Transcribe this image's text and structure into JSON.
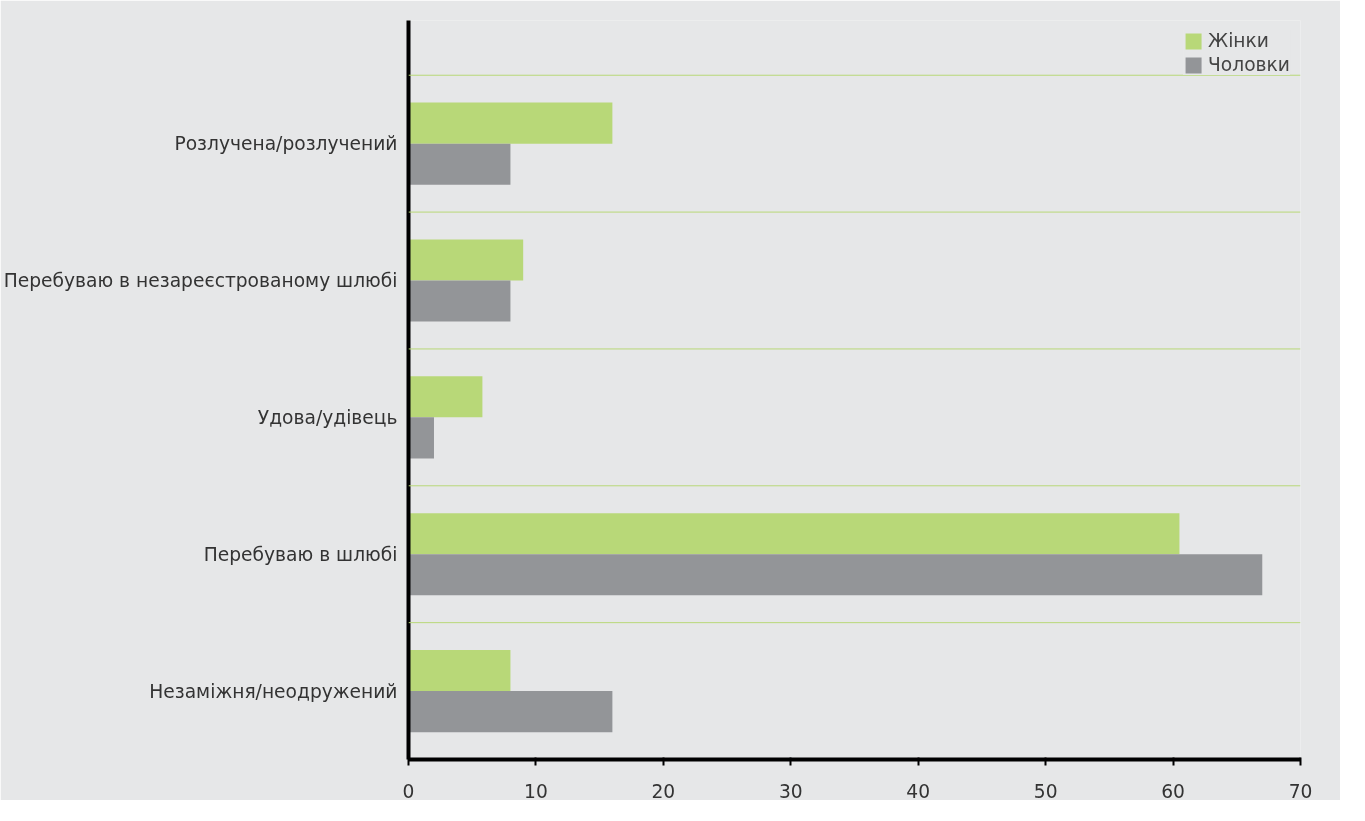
{
  "chart_data": {
    "type": "bar",
    "orientation": "horizontal",
    "categories": [
      "Розлучена/розлучений",
      "Перебуваю в незареєстрованому шлюбі",
      "Удова/удівець",
      "Перебуваю в шлюбі",
      "Незаміжня/неодружений"
    ],
    "series": [
      {
        "name": "Жінки",
        "color": "#b8d878",
        "values": [
          16,
          9,
          5.8,
          60.5,
          8
        ]
      },
      {
        "name": "Чоловки",
        "color": "#939598",
        "values": [
          8,
          8,
          2,
          67,
          16
        ]
      }
    ],
    "xlim": [
      0,
      70
    ],
    "xticks": [
      0,
      10,
      20,
      30,
      40,
      50,
      60,
      70
    ],
    "grid": "y",
    "legend": "top right"
  }
}
